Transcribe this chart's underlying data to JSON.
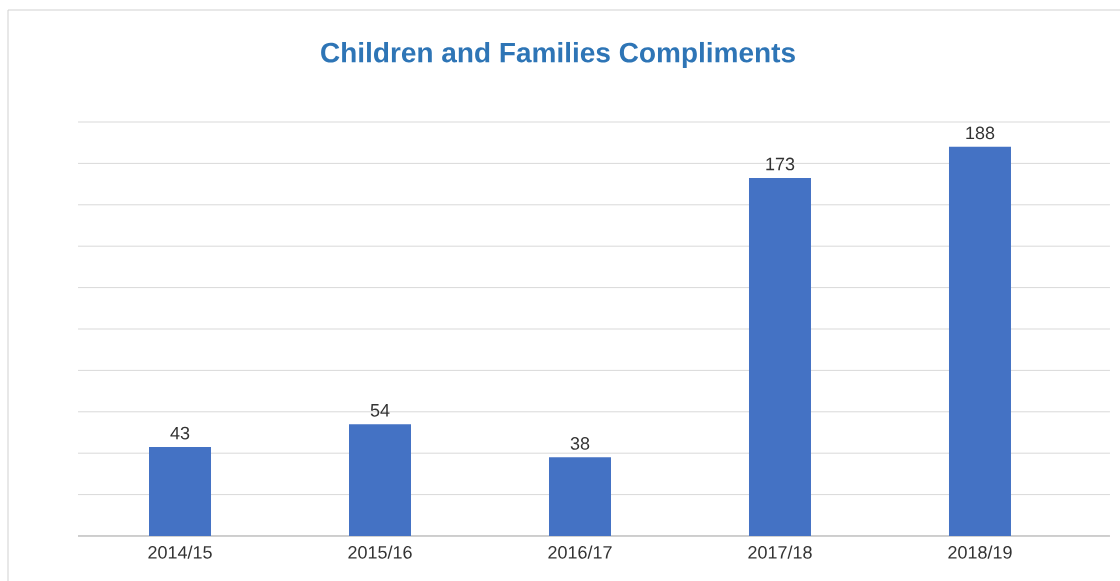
{
  "chart_data": {
    "type": "bar",
    "title": "Children and Families Compliments",
    "categories": [
      "2014/15",
      "2015/16",
      "2016/17",
      "2017/18",
      "2018/19"
    ],
    "values": [
      43,
      54,
      38,
      173,
      188
    ],
    "color": "#4472c4",
    "ylim": [
      0,
      200
    ],
    "yticks": [
      {
        "value": 0,
        "label": null
      },
      {
        "value": 20,
        "label": null
      },
      {
        "value": 40,
        "label": null
      },
      {
        "value": 60,
        "label": null
      },
      {
        "value": 80,
        "label": null
      },
      {
        "value": 100,
        "label": null
      },
      {
        "value": 120,
        "label": null
      },
      {
        "value": 140,
        "label": null
      },
      {
        "value": 160,
        "label": null
      },
      {
        "value": 180,
        "label": null
      },
      {
        "value": 200,
        "label": null
      }
    ],
    "tick_labels": "x",
    "grid": "y",
    "data_labels": true
  }
}
